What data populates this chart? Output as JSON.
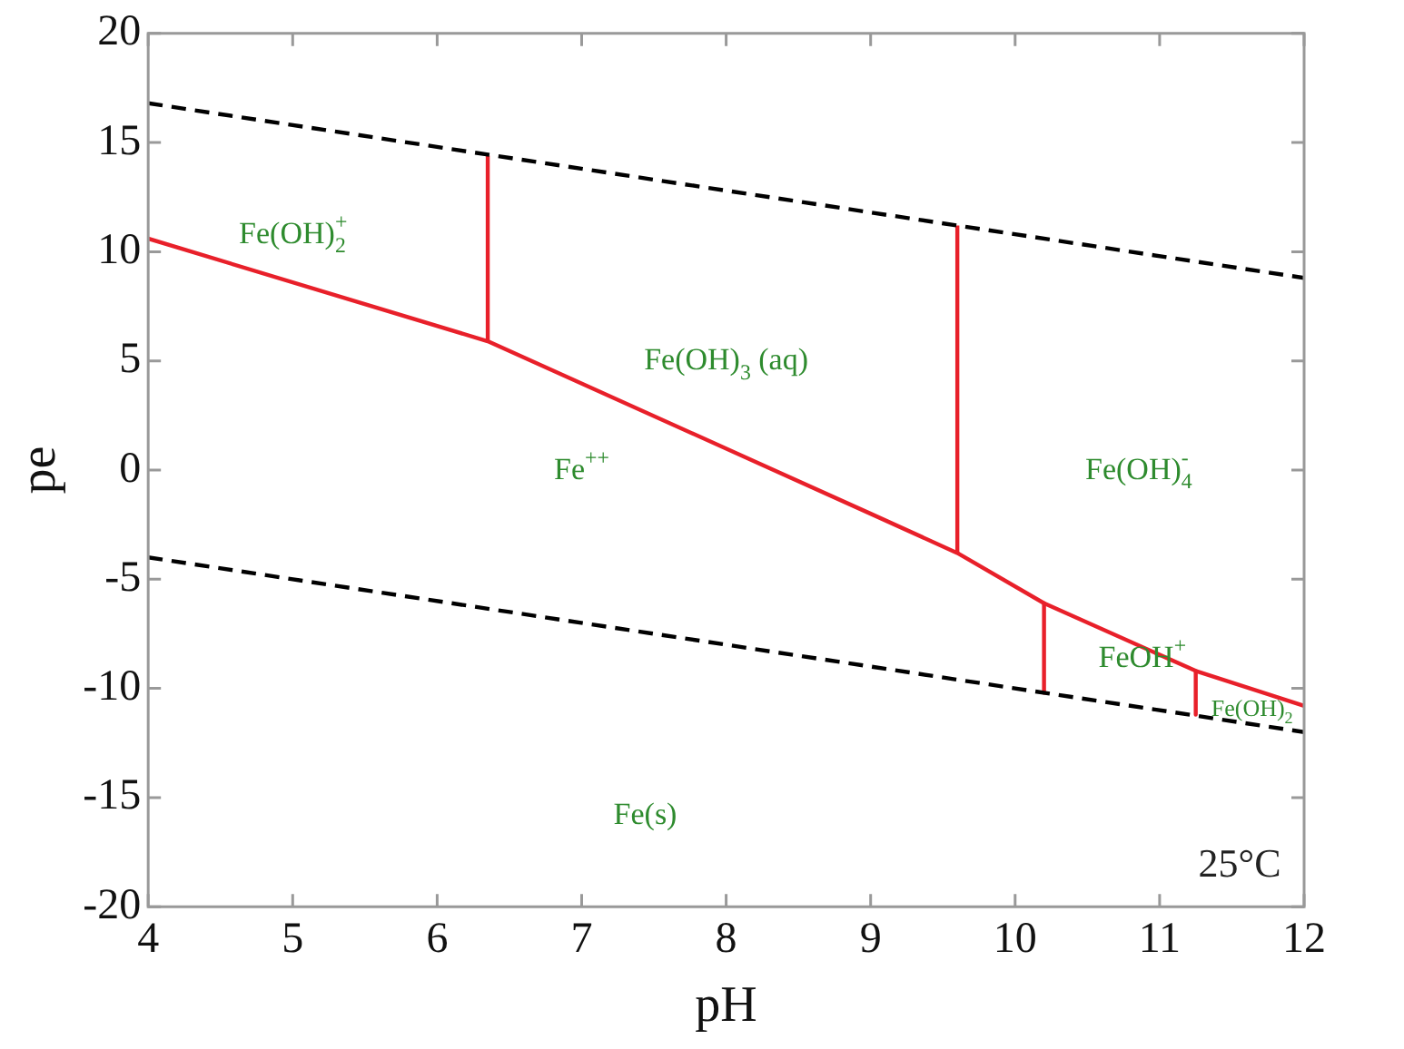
{
  "chart_data": {
    "type": "line",
    "xlabel": "pH",
    "ylabel": "pe",
    "xlim": [
      4,
      12
    ],
    "ylim": [
      -20,
      20
    ],
    "xticks": [
      4,
      5,
      6,
      7,
      8,
      9,
      10,
      11,
      12
    ],
    "yticks": [
      -20,
      -15,
      -10,
      -5,
      0,
      5,
      10,
      15,
      20
    ],
    "grid": false,
    "legend": false,
    "marker": "none",
    "series": [
      {
        "color": "#000000",
        "line_style": "dashed",
        "x": [
          4,
          12
        ],
        "values": [
          16.8,
          8.8
        ]
      },
      {
        "color": "#000000",
        "line_style": "dashed",
        "x": [
          4,
          12
        ],
        "values": [
          -4,
          -12
        ]
      },
      {
        "color": "#e8202a",
        "line_style": "solid",
        "x": [
          4,
          6.35,
          9,
          9.6,
          10.2,
          11.25,
          12
        ],
        "values": [
          10.6,
          5.9,
          -2,
          -3.8,
          -6.1,
          -9.2,
          -10.8
        ]
      },
      {
        "color": "#e8202a",
        "line_style": "solid",
        "x": [
          6.35,
          6.35
        ],
        "values": [
          5.9,
          14.4
        ]
      },
      {
        "color": "#e8202a",
        "line_style": "solid",
        "x": [
          9.6,
          9.6
        ],
        "values": [
          -3.8,
          11.2
        ]
      },
      {
        "color": "#e8202a",
        "line_style": "solid",
        "x": [
          10.2,
          10.2
        ],
        "values": [
          -6.1,
          -10.2
        ]
      },
      {
        "color": "#e8202a",
        "line_style": "solid",
        "x": [
          11.25,
          11.25
        ],
        "values": [
          -9.2,
          -11.2
        ]
      }
    ],
    "annotations": [
      "Fe(OH)$_{2}$$^{+}$",
      "Fe(OH)$_{3}$ (aq)",
      "Fe$^{++}$",
      "Fe(OH)$_{4}$$^{-}$",
      "FeOH$^{+}$",
      "Fe(OH)$_{2}$",
      "Fe(s)",
      "25°C"
    ]
  }
}
